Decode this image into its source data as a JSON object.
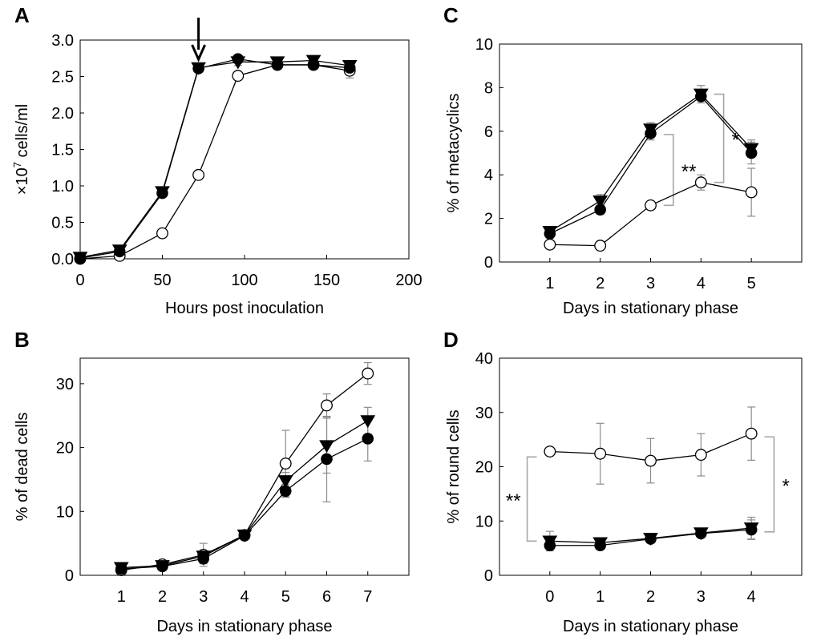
{
  "figure": {
    "panels": [
      "A",
      "B",
      "C",
      "D"
    ]
  },
  "colors": {
    "axis": "#000000",
    "error_bar": "#8c8c8c",
    "bracket": "#a6a6a6",
    "filled_marker": "#000000",
    "open_marker_fill": "#ffffff"
  },
  "chart_data": [
    {
      "panel_label": "A",
      "type": "line",
      "xlabel": "Hours post inoculation",
      "ylabel_prefix": "×10",
      "ylabel_exp": "7",
      "ylabel_suffix": " cells/ml",
      "xlim": [
        0,
        200
      ],
      "ylim": [
        0,
        3.0
      ],
      "xticks": [
        0,
        50,
        100,
        150,
        200
      ],
      "yticks": [
        0.0,
        0.5,
        1.0,
        1.5,
        2.0,
        2.5,
        3.0
      ],
      "yticks_labels": [
        "0.0",
        "0.5",
        "1.0",
        "1.5",
        "2.0",
        "2.5",
        "3.0"
      ],
      "grid": false,
      "arrow_at_x": 72,
      "series": [
        {
          "marker": "triangle-down-filled",
          "x": [
            0,
            24,
            50,
            72,
            96,
            120,
            142,
            164
          ],
          "y": [
            0.02,
            0.12,
            0.92,
            2.62,
            2.7,
            2.7,
            2.72,
            2.65
          ],
          "err": [
            0,
            0,
            0,
            0.03,
            0.05,
            0.03,
            0.05,
            0.05
          ]
        },
        {
          "marker": "circle-filled",
          "x": [
            0,
            24,
            50,
            72,
            96,
            120,
            142,
            164
          ],
          "y": [
            0.01,
            0.1,
            0.9,
            2.61,
            2.74,
            2.66,
            2.66,
            2.62
          ],
          "err": [
            0,
            0,
            0,
            0.03,
            0.05,
            0.03,
            0.04,
            0.05
          ]
        },
        {
          "marker": "circle-open",
          "x": [
            0,
            24,
            50,
            72,
            96,
            120,
            142,
            164
          ],
          "y": [
            0.0,
            0.04,
            0.35,
            1.15,
            2.51,
            2.66,
            2.66,
            2.58
          ],
          "err": [
            0,
            0,
            0,
            0,
            0,
            0.05,
            0.05,
            0.1
          ]
        }
      ]
    },
    {
      "panel_label": "B",
      "type": "line",
      "xlabel": "Days in stationary phase",
      "ylabel": "% of dead cells",
      "xlim": [
        0,
        8
      ],
      "ylim": [
        0,
        34
      ],
      "xticks": [
        1,
        2,
        3,
        4,
        5,
        6,
        7
      ],
      "yticks": [
        0,
        10,
        20,
        30
      ],
      "grid": false,
      "series": [
        {
          "marker": "triangle-down-filled",
          "x": [
            1,
            2,
            3,
            4,
            5,
            6,
            7
          ],
          "y": [
            1.2,
            1.5,
            3.0,
            6.3,
            14.8,
            20.3,
            24.2
          ],
          "err": [
            0.4,
            0.5,
            0.8,
            0.3,
            1.3,
            4.3,
            2.1
          ]
        },
        {
          "marker": "circle-filled",
          "x": [
            1,
            2,
            3,
            4,
            5,
            6,
            7
          ],
          "y": [
            1.0,
            1.4,
            2.6,
            6.2,
            13.2,
            18.2,
            21.4
          ],
          "err": [
            0.3,
            0.4,
            0.8,
            0.3,
            1.0,
            6.7,
            3.5
          ]
        },
        {
          "marker": "circle-open",
          "x": [
            1,
            2,
            3,
            4,
            5,
            6,
            7
          ],
          "y": [
            0.8,
            1.7,
            3.2,
            6.3,
            17.5,
            26.6,
            31.6
          ],
          "err": [
            0.3,
            0.4,
            1.8,
            0.3,
            5.2,
            1.8,
            1.7
          ]
        }
      ]
    },
    {
      "panel_label": "C",
      "type": "line",
      "xlabel": "Days in stationary phase",
      "ylabel": "% of metacyclics",
      "xlim": [
        0,
        6
      ],
      "ylim": [
        0,
        10
      ],
      "xticks": [
        1,
        2,
        3,
        4,
        5
      ],
      "yticks": [
        0,
        2,
        4,
        6,
        8,
        10
      ],
      "grid": false,
      "series": [
        {
          "marker": "triangle-down-filled",
          "x": [
            1,
            2,
            3,
            4,
            5
          ],
          "y": [
            1.4,
            2.8,
            6.1,
            7.7,
            5.2
          ],
          "err": [
            0.2,
            0.3,
            0.3,
            0.4,
            0.4
          ]
        },
        {
          "marker": "circle-filled",
          "x": [
            1,
            2,
            3,
            4,
            5
          ],
          "y": [
            1.3,
            2.4,
            5.9,
            7.6,
            5.0
          ],
          "err": [
            0.2,
            0.2,
            0.3,
            0.3,
            0.5
          ]
        },
        {
          "marker": "circle-open",
          "x": [
            1,
            2,
            3,
            4,
            5
          ],
          "y": [
            0.8,
            0.75,
            2.6,
            3.65,
            3.2
          ],
          "err": [
            0.05,
            0.05,
            0.1,
            0.35,
            1.1
          ]
        }
      ],
      "brackets": [
        {
          "x": 3.45,
          "y_from": 2.6,
          "y_to": 5.85,
          "label": "**"
        },
        {
          "x": 4.45,
          "y_from": 3.65,
          "y_to": 7.7,
          "label": "*"
        }
      ]
    },
    {
      "panel_label": "D",
      "type": "line",
      "xlabel": "Days in stationary phase",
      "ylabel": "% of round cells",
      "xlim": [
        -1,
        5
      ],
      "ylim": [
        0,
        40
      ],
      "xticks": [
        0,
        1,
        2,
        3,
        4
      ],
      "yticks": [
        0,
        10,
        20,
        30,
        40
      ],
      "grid": false,
      "series": [
        {
          "marker": "triangle-down-filled",
          "x": [
            0,
            1,
            2,
            3,
            4
          ],
          "y": [
            6.3,
            6.0,
            6.8,
            7.8,
            8.7
          ],
          "err": [
            1.8,
            0.6,
            0.7,
            0.6,
            2.0
          ]
        },
        {
          "marker": "circle-filled",
          "x": [
            0,
            1,
            2,
            3,
            4
          ],
          "y": [
            5.5,
            5.5,
            6.7,
            7.7,
            8.4
          ],
          "err": [
            0.5,
            0.5,
            0.5,
            0.5,
            1.8
          ]
        },
        {
          "marker": "circle-open",
          "x": [
            0,
            1,
            2,
            3,
            4
          ],
          "y": [
            22.8,
            22.4,
            21.1,
            22.2,
            26.1
          ],
          "err": [
            0.4,
            5.6,
            4.1,
            3.9,
            4.9
          ]
        }
      ],
      "brackets": [
        {
          "x": -0.45,
          "y_from": 6.3,
          "y_to": 21.8,
          "label": "**"
        },
        {
          "x": 4.45,
          "y_from": 8.0,
          "y_to": 25.5,
          "label": "*"
        }
      ]
    }
  ]
}
